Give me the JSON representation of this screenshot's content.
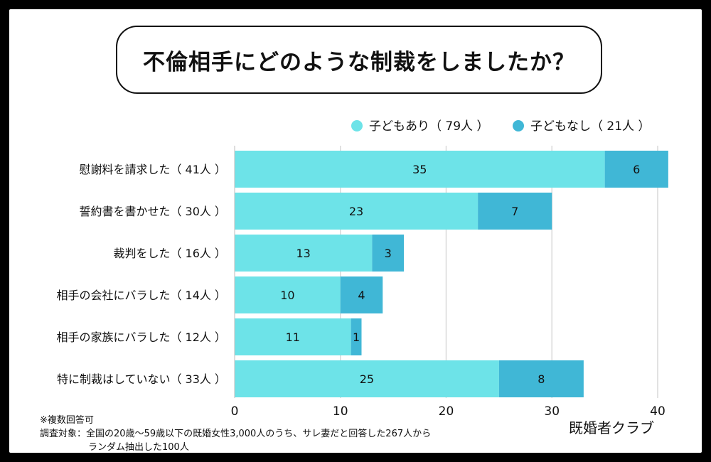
{
  "title": "不倫相手にどのような制裁をしましたか？",
  "notes": {
    "line1": "※複数回答可",
    "line2": "調査対象：全国の20歳〜59歳以下の既婚女性3,000人のうち、サレ妻だと回答した267人から",
    "line3": "ランダム抽出した100人"
  },
  "credit": "既婚者クラブ",
  "colors": {
    "with_children": "#6de3e8",
    "without_children": "#40b7d6",
    "grid": "#d9d9d9"
  },
  "chart_data": {
    "type": "bar",
    "orientation": "horizontal",
    "stacked": true,
    "categories": [
      "慰謝料を請求した（ 41人 ）",
      "誓約書を書かせた（ 30人 ）",
      "裁判をした（ 16人 ）",
      "相手の会社にバラした（ 14人 ）",
      "相手の家族にバラした（ 12人 ）",
      "特に制裁はしていない（ 33人 ）"
    ],
    "series": [
      {
        "name": "子どもあり（ 79人 ）",
        "values": [
          35,
          23,
          13,
          10,
          11,
          25
        ]
      },
      {
        "name": "子どもなし（ 21人 ）",
        "values": [
          6,
          7,
          3,
          4,
          1,
          8
        ]
      }
    ],
    "xlim": [
      0,
      40
    ],
    "xticks": [
      "0",
      "10",
      "20",
      "30",
      "40"
    ],
    "grid": true,
    "legend": "top-right"
  }
}
